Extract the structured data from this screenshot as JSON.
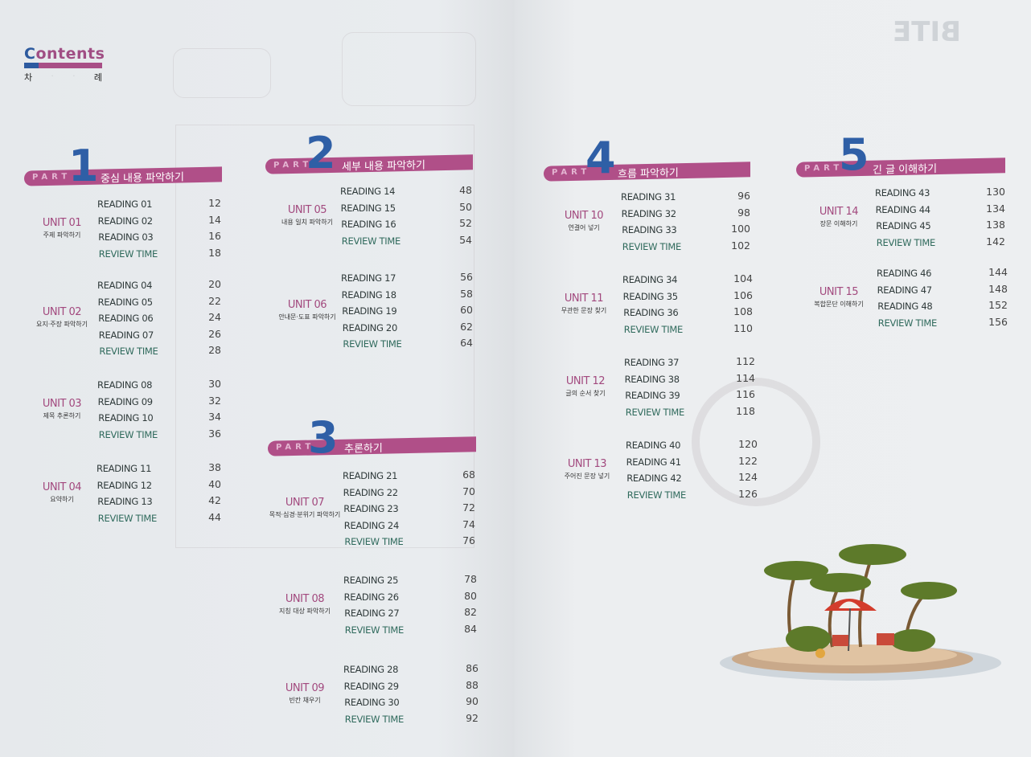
{
  "header": {
    "logo": "Contents",
    "subtitle_chars": [
      "차",
      "례"
    ],
    "brand": "BITE"
  },
  "colors": {
    "accent_pink": "#b04f88",
    "accent_blue": "#2f5fa6",
    "review_green": "#2f6a5c"
  },
  "part_word": "PART",
  "parts": [
    {
      "number": "1",
      "title": "중심 내용 파악하기",
      "units": [
        {
          "name": "UNIT 01",
          "subtitle": "주제 파악하기",
          "items": [
            {
              "label": "READING 01",
              "page": "12"
            },
            {
              "label": "READING 02",
              "page": "14"
            },
            {
              "label": "READING 03",
              "page": "16"
            },
            {
              "label": "REVIEW TIME",
              "page": "18"
            }
          ]
        },
        {
          "name": "UNIT 02",
          "subtitle": "요지·주장 파악하기",
          "items": [
            {
              "label": "READING 04",
              "page": "20"
            },
            {
              "label": "READING 05",
              "page": "22"
            },
            {
              "label": "READING 06",
              "page": "24"
            },
            {
              "label": "READING 07",
              "page": "26"
            },
            {
              "label": "REVIEW TIME",
              "page": "28"
            }
          ]
        },
        {
          "name": "UNIT 03",
          "subtitle": "제목 추론하기",
          "items": [
            {
              "label": "READING 08",
              "page": "30"
            },
            {
              "label": "READING 09",
              "page": "32"
            },
            {
              "label": "READING 10",
              "page": "34"
            },
            {
              "label": "REVIEW TIME",
              "page": "36"
            }
          ]
        },
        {
          "name": "UNIT 04",
          "subtitle": "요약하기",
          "items": [
            {
              "label": "READING 11",
              "page": "38"
            },
            {
              "label": "READING 12",
              "page": "40"
            },
            {
              "label": "READING 13",
              "page": "42"
            },
            {
              "label": "REVIEW TIME",
              "page": "44"
            }
          ]
        }
      ]
    },
    {
      "number": "2",
      "title": "세부 내용 파악하기",
      "units": [
        {
          "name": "UNIT 05",
          "subtitle": "내용 일치 파악하기",
          "items": [
            {
              "label": "READING 14",
              "page": "48"
            },
            {
              "label": "READING 15",
              "page": "50"
            },
            {
              "label": "READING 16",
              "page": "52"
            },
            {
              "label": "REVIEW TIME",
              "page": "54"
            }
          ]
        },
        {
          "name": "UNIT 06",
          "subtitle": "안내문·도표 파악하기",
          "items": [
            {
              "label": "READING 17",
              "page": "56"
            },
            {
              "label": "READING 18",
              "page": "58"
            },
            {
              "label": "READING 19",
              "page": "60"
            },
            {
              "label": "READING 20",
              "page": "62"
            },
            {
              "label": "REVIEW TIME",
              "page": "64"
            }
          ]
        }
      ]
    },
    {
      "number": "3",
      "title": "추론하기",
      "units": [
        {
          "name": "UNIT 07",
          "subtitle": "목적·심경·분위기 파악하기",
          "items": [
            {
              "label": "READING 21",
              "page": "68"
            },
            {
              "label": "READING 22",
              "page": "70"
            },
            {
              "label": "READING 23",
              "page": "72"
            },
            {
              "label": "READING 24",
              "page": "74"
            },
            {
              "label": "REVIEW TIME",
              "page": "76"
            }
          ]
        },
        {
          "name": "UNIT 08",
          "subtitle": "지칭 대상 파악하기",
          "items": [
            {
              "label": "READING 25",
              "page": "78"
            },
            {
              "label": "READING 26",
              "page": "80"
            },
            {
              "label": "READING 27",
              "page": "82"
            },
            {
              "label": "REVIEW TIME",
              "page": "84"
            }
          ]
        },
        {
          "name": "UNIT 09",
          "subtitle": "빈칸 채우기",
          "items": [
            {
              "label": "READING 28",
              "page": "86"
            },
            {
              "label": "READING 29",
              "page": "88"
            },
            {
              "label": "READING 30",
              "page": "90"
            },
            {
              "label": "REVIEW TIME",
              "page": "92"
            }
          ]
        }
      ]
    },
    {
      "number": "4",
      "title": "흐름 파악하기",
      "units": [
        {
          "name": "UNIT 10",
          "subtitle": "연결어 넣기",
          "items": [
            {
              "label": "READING 31",
              "page": "96"
            },
            {
              "label": "READING 32",
              "page": "98"
            },
            {
              "label": "READING 33",
              "page": "100"
            },
            {
              "label": "REVIEW TIME",
              "page": "102"
            }
          ]
        },
        {
          "name": "UNIT 11",
          "subtitle": "무관한 문장 찾기",
          "items": [
            {
              "label": "READING 34",
              "page": "104"
            },
            {
              "label": "READING 35",
              "page": "106"
            },
            {
              "label": "READING 36",
              "page": "108"
            },
            {
              "label": "REVIEW TIME",
              "page": "110"
            }
          ]
        },
        {
          "name": "UNIT 12",
          "subtitle": "글의 순서 찾기",
          "items": [
            {
              "label": "READING 37",
              "page": "112"
            },
            {
              "label": "READING 38",
              "page": "114"
            },
            {
              "label": "READING 39",
              "page": "116"
            },
            {
              "label": "REVIEW TIME",
              "page": "118"
            }
          ]
        },
        {
          "name": "UNIT 13",
          "subtitle": "주어진 문장 넣기",
          "items": [
            {
              "label": "READING 40",
              "page": "120"
            },
            {
              "label": "READING 41",
              "page": "122"
            },
            {
              "label": "READING 42",
              "page": "124"
            },
            {
              "label": "REVIEW TIME",
              "page": "126"
            }
          ]
        }
      ]
    },
    {
      "number": "5",
      "title": "긴 글 이해하기",
      "units": [
        {
          "name": "UNIT 14",
          "subtitle": "장문 이해하기",
          "items": [
            {
              "label": "READING 43",
              "page": "130"
            },
            {
              "label": "READING 44",
              "page": "134"
            },
            {
              "label": "READING 45",
              "page": "138"
            },
            {
              "label": "REVIEW TIME",
              "page": "142"
            }
          ]
        },
        {
          "name": "UNIT 15",
          "subtitle": "복합문단 이해하기",
          "items": [
            {
              "label": "READING 46",
              "page": "144"
            },
            {
              "label": "READING 47",
              "page": "148"
            },
            {
              "label": "READING 48",
              "page": "152"
            },
            {
              "label": "REVIEW TIME",
              "page": "156"
            }
          ]
        }
      ]
    }
  ]
}
